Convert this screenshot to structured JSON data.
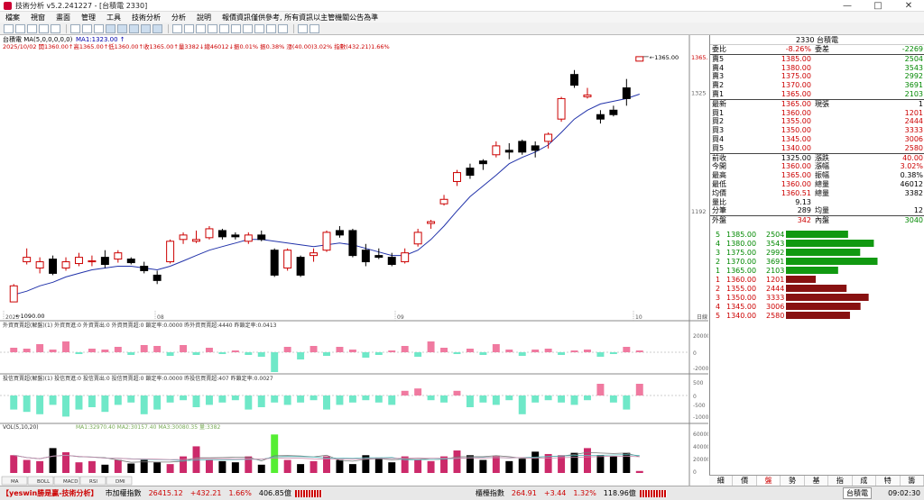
{
  "window": {
    "title": "技術分析 v5.2.241227 - [台積電 2330]",
    "controls": [
      "—",
      "□",
      "✕"
    ]
  },
  "menu": {
    "items": [
      "檔案",
      "視窗",
      "畫面",
      "管理",
      "工具",
      "技術分析",
      "分析",
      "說明"
    ],
    "notice": "報價資訊僅供參考, 所有資訊以主管機關公告為準"
  },
  "toolbar": {
    "icons": [
      "grid-icon",
      "list-icon",
      "chart-icon",
      "zoom-in-icon",
      "zoom-out-icon",
      "candle-icon",
      "ohlc-icon",
      "line-icon",
      "frame-icon",
      "frame-icon",
      "frame-icon",
      "frame-icon",
      "frame-icon",
      "pen-icon",
      "bars-icon",
      "vol-icon",
      "arrow-icon",
      "text-icon",
      "rect-icon",
      "ellipse-icon",
      "cross-icon",
      "marker-icon",
      "zoom-icon",
      "print-icon",
      "save-icon"
    ]
  },
  "chart": {
    "symbol_line": "台積電 MA(5,0,0,0,0,0)",
    "ma_value": "MA1:1323.00 ↑",
    "info_line": "2025/10/02 開1360.00↑高1365.00↑低1360.00↑收1365.00↑量3382↓總46012↓振0.01%  振0.38%  漲(40.00)3.02%  指數(432.21)1.66%",
    "price_labels": [
      "1365.00",
      "1325",
      "1192",
      "1090.00"
    ],
    "hi_label": "1365.00",
    "lo_label": "1090.00",
    "date_labels": [
      "2025",
      "08",
      "09",
      "10"
    ],
    "foreign_title": "外資買賣超(解盤)(1)  外資買進:0  外資賣出:0  外資買賣超:0  鎖定率:0.0000  昨外資買賣超:4440  昨鎖定率:0.0413",
    "foreign_axis": [
      "20000",
      "0",
      "-20000"
    ],
    "dealer_title": "投信買賣超(解盤)(1)  投信買進:0  投信賣出:0  投信買賣超:0  鎖定率:0.0000  昨投信買賣超:407  昨鎖定率:0.0027",
    "dealer_axis": [
      "500",
      "0",
      "-500",
      "-1000"
    ],
    "vol_title": "VOL(5,10,20)",
    "vol_stats": "MA1:32970.40  MA2:30157.40  MA3:30080.35  量:3382",
    "vol_axis": [
      "60000",
      "40000",
      "20000",
      "0"
    ],
    "sub_tabs": [
      "MA",
      "BOLL",
      "MACD",
      "RSI",
      "DMI"
    ],
    "axis_right_tag": "日線"
  },
  "chart_data": {
    "type": "candlestick",
    "title": "台積電 2330",
    "ylabel": "",
    "ylim": [
      1080,
      1375
    ],
    "candles": [
      [
        1090,
        1110,
        1090,
        1108
      ],
      [
        1135,
        1150,
        1132,
        1140
      ],
      [
        1128,
        1140,
        1122,
        1135
      ],
      [
        1138,
        1142,
        1120,
        1122
      ],
      [
        1128,
        1140,
        1125,
        1135
      ],
      [
        1133,
        1145,
        1130,
        1140
      ],
      [
        1135,
        1142,
        1130,
        1136
      ],
      [
        1140,
        1148,
        1128,
        1132
      ],
      [
        1138,
        1148,
        1134,
        1145
      ],
      [
        1138,
        1140,
        1132,
        1134
      ],
      [
        1130,
        1135,
        1122,
        1125
      ],
      [
        1120,
        1125,
        1110,
        1114
      ],
      [
        1135,
        1160,
        1133,
        1158
      ],
      [
        1160,
        1168,
        1155,
        1165
      ],
      [
        1158,
        1170,
        1156,
        1160
      ],
      [
        1162,
        1175,
        1160,
        1172
      ],
      [
        1170,
        1172,
        1160,
        1163
      ],
      [
        1165,
        1168,
        1160,
        1163
      ],
      [
        1158,
        1168,
        1155,
        1165
      ],
      [
        1165,
        1170,
        1158,
        1160
      ],
      [
        1148,
        1150,
        1118,
        1120
      ],
      [
        1128,
        1150,
        1125,
        1148
      ],
      [
        1140,
        1142,
        1118,
        1120
      ],
      [
        1142,
        1150,
        1135,
        1145
      ],
      [
        1148,
        1170,
        1146,
        1168
      ],
      [
        1170,
        1175,
        1162,
        1165
      ],
      [
        1170,
        1172,
        1140,
        1142
      ],
      [
        1148,
        1155,
        1130,
        1135
      ],
      [
        1142,
        1150,
        1138,
        1140
      ],
      [
        1140,
        1145,
        1130,
        1132
      ],
      [
        1135,
        1150,
        1133,
        1145
      ],
      [
        1155,
        1172,
        1152,
        1168
      ],
      [
        1178,
        1182,
        1172,
        1180
      ],
      [
        1200,
        1210,
        1198,
        1205
      ],
      [
        1225,
        1238,
        1220,
        1235
      ],
      [
        1240,
        1245,
        1228,
        1232
      ],
      [
        1248,
        1250,
        1238,
        1245
      ],
      [
        1255,
        1270,
        1252,
        1265
      ],
      [
        1260,
        1268,
        1250,
        1258
      ],
      [
        1270,
        1272,
        1255,
        1258
      ],
      [
        1265,
        1270,
        1252,
        1260
      ],
      [
        1270,
        1280,
        1262,
        1278
      ],
      [
        1295,
        1320,
        1292,
        1318
      ],
      [
        1345,
        1350,
        1330,
        1333
      ],
      [
        1320,
        1330,
        1318,
        1322
      ],
      [
        1300,
        1305,
        1290,
        1295
      ],
      [
        1305,
        1310,
        1298,
        1300
      ],
      [
        1330,
        1340,
        1310,
        1318
      ],
      [
        1360,
        1365,
        1360,
        1365
      ]
    ],
    "ma": [
      1098,
      1102,
      1108,
      1112,
      1118,
      1122,
      1126,
      1128,
      1130,
      1130,
      1128,
      1126,
      1130,
      1136,
      1142,
      1148,
      1152,
      1156,
      1160,
      1160,
      1158,
      1156,
      1154,
      1152,
      1154,
      1156,
      1154,
      1150,
      1146,
      1142,
      1142,
      1148,
      1160,
      1175,
      1192,
      1208,
      1220,
      1232,
      1245,
      1252,
      1258,
      1266,
      1280,
      1295,
      1305,
      1312,
      1315,
      1318,
      1323
    ],
    "foreign_net": [
      5000,
      4000,
      9000,
      3000,
      12000,
      -2000,
      4000,
      3000,
      6000,
      -3000,
      8000,
      7000,
      -4000,
      8000,
      -3000,
      5000,
      -2000,
      2000,
      -3000,
      -5000,
      -22000,
      6000,
      -8000,
      7000,
      -4000,
      6000,
      3000,
      -6000,
      -3000,
      2000,
      7000,
      -5000,
      12000,
      5000,
      -2000,
      4000,
      -3000,
      9000,
      3000,
      -4000,
      3000,
      4000,
      -3000,
      2000,
      3000,
      -5000,
      -2000,
      6000,
      2000
    ],
    "dealer_net": [
      -600,
      -700,
      -800,
      -400,
      -900,
      -600,
      -500,
      -700,
      -400,
      -300,
      -800,
      -600,
      -300,
      -200,
      -500,
      -400,
      -300,
      -200,
      -600,
      -500,
      -300,
      -400,
      -300,
      -200,
      -600,
      -400,
      -300,
      -200,
      -300,
      -400,
      200,
      300,
      -200,
      -300,
      200,
      -500,
      -300,
      -400,
      -200,
      -800,
      -300,
      -200,
      -300,
      -400,
      -200,
      500,
      -300,
      -600,
      500
    ],
    "volume": [
      30000,
      22000,
      20000,
      42000,
      35000,
      18000,
      20000,
      14000,
      22000,
      16000,
      22000,
      18000,
      15000,
      28000,
      45000,
      22000,
      20000,
      18000,
      28000,
      14000,
      65000,
      22000,
      15000,
      20000,
      28000,
      22000,
      15000,
      30000,
      26000,
      18000,
      28000,
      22000,
      20000,
      28000,
      38000,
      30000,
      22000,
      28000,
      20000,
      24000,
      36000,
      32000,
      30000,
      34000,
      42000,
      30000,
      28000,
      34000,
      3382
    ]
  },
  "quote": {
    "header": "2330 台積電",
    "rows": [
      {
        "l1": "委比",
        "v1": "-8.26%",
        "l2": "委差",
        "v2": "-2269",
        "c1": "red",
        "c2": "green"
      },
      {
        "l1": "賣5",
        "v1": "1385.00",
        "l2": "",
        "v2": "2504",
        "c1": "red",
        "c2": "green"
      },
      {
        "l1": "賣4",
        "v1": "1380.00",
        "l2": "",
        "v2": "3543",
        "c1": "red",
        "c2": "green"
      },
      {
        "l1": "賣3",
        "v1": "1375.00",
        "l2": "",
        "v2": "2992",
        "c1": "red",
        "c2": "green"
      },
      {
        "l1": "賣2",
        "v1": "1370.00",
        "l2": "",
        "v2": "3691",
        "c1": "red",
        "c2": "green"
      },
      {
        "l1": "賣1",
        "v1": "1365.00",
        "l2": "",
        "v2": "2103",
        "c1": "red",
        "c2": "green"
      },
      {
        "l1": "最新",
        "v1": "1365.00",
        "l2": "現張",
        "v2": "1",
        "c1": "red",
        "c2": "blk"
      },
      {
        "l1": "買1",
        "v1": "1360.00",
        "l2": "",
        "v2": "1201",
        "c1": "red",
        "c2": "red"
      },
      {
        "l1": "買2",
        "v1": "1355.00",
        "l2": "",
        "v2": "2444",
        "c1": "red",
        "c2": "red"
      },
      {
        "l1": "買3",
        "v1": "1350.00",
        "l2": "",
        "v2": "3333",
        "c1": "red",
        "c2": "red"
      },
      {
        "l1": "買4",
        "v1": "1345.00",
        "l2": "",
        "v2": "3006",
        "c1": "red",
        "c2": "red"
      },
      {
        "l1": "買5",
        "v1": "1340.00",
        "l2": "",
        "v2": "2580",
        "c1": "red",
        "c2": "red"
      },
      {
        "l1": "前收",
        "v1": "1325.00",
        "l2": "漲跌",
        "v2": "40.00",
        "c1": "blk",
        "c2": "red"
      },
      {
        "l1": "今開",
        "v1": "1360.00",
        "l2": "漲幅",
        "v2": "3.02%",
        "c1": "red",
        "c2": "red"
      },
      {
        "l1": "最高",
        "v1": "1365.00",
        "l2": "振幅",
        "v2": "0.38%",
        "c1": "red",
        "c2": "blk"
      },
      {
        "l1": "最低",
        "v1": "1360.00",
        "l2": "總量",
        "v2": "46012",
        "c1": "red",
        "c2": "blk"
      },
      {
        "l1": "均價",
        "v1": "1360.51",
        "l2": "總量",
        "v2": "3382",
        "c1": "red",
        "c2": "blk"
      },
      {
        "l1": "量比",
        "v1": "9.13",
        "l2": "",
        "v2": "",
        "c1": "blk",
        "c2": "blk"
      },
      {
        "l1": "分筆",
        "v1": "289",
        "l2": "均量",
        "v2": "12",
        "c1": "blk",
        "c2": "blk"
      },
      {
        "l1": "外盤",
        "v1": "342",
        "l2": "內盤",
        "v2": "3040",
        "c1": "red",
        "c2": "green"
      }
    ],
    "book": [
      {
        "lvl": "5",
        "price": "1385.00",
        "qty": "2504",
        "side": "ask",
        "val": 2504
      },
      {
        "lvl": "4",
        "price": "1380.00",
        "qty": "3543",
        "side": "ask",
        "val": 3543
      },
      {
        "lvl": "3",
        "price": "1375.00",
        "qty": "2992",
        "side": "ask",
        "val": 2992
      },
      {
        "lvl": "2",
        "price": "1370.00",
        "qty": "3691",
        "side": "ask",
        "val": 3691
      },
      {
        "lvl": "1",
        "price": "1365.00",
        "qty": "2103",
        "side": "ask",
        "val": 2103
      },
      {
        "lvl": "1",
        "price": "1360.00",
        "qty": "1201",
        "side": "bid",
        "val": 1201
      },
      {
        "lvl": "2",
        "price": "1355.00",
        "qty": "2444",
        "side": "bid",
        "val": 2444
      },
      {
        "lvl": "3",
        "price": "1350.00",
        "qty": "3333",
        "side": "bid",
        "val": 3333
      },
      {
        "lvl": "4",
        "price": "1345.00",
        "qty": "3006",
        "side": "bid",
        "val": 3006
      },
      {
        "lvl": "5",
        "price": "1340.00",
        "qty": "2580",
        "side": "bid",
        "val": 2580
      }
    ],
    "tabs": [
      "細",
      "價",
      "盤",
      "勢",
      "基",
      "指",
      "成",
      "特",
      "籌"
    ]
  },
  "status": {
    "brand": "【yeswin勝是贏-技術分析】",
    "idx1_label": "市加權指數",
    "idx1_value": "26415.12",
    "idx1_change": "+432.21",
    "idx1_pct": "1.66%",
    "idx1_amt": "406.85億",
    "idx2_label": "櫃檯指數",
    "idx2_value": "264.91",
    "idx2_change": "+3.44",
    "idx2_pct": "1.32%",
    "idx2_amt": "118.96億",
    "ticker": "台積電",
    "clock": "09:02:30",
    "colors": {
      "up": "#cc0000",
      "down": "#008800",
      "ask_bar": "#119911",
      "bid_bar": "#881111"
    }
  }
}
